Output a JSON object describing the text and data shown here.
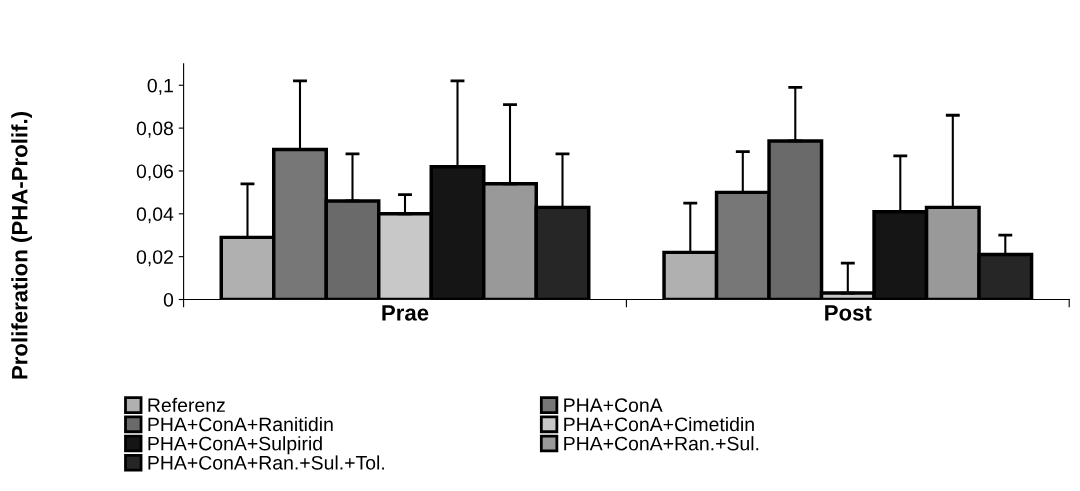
{
  "chart_data": {
    "type": "bar",
    "ylabel": "Proliferation (PHA-Prolif.)",
    "categories": [
      "Prae",
      "Post"
    ],
    "series": [
      {
        "name": "Referenz",
        "color": "#b0b0b0",
        "values": [
          0.029,
          0.022
        ],
        "errors": [
          [
            0.029,
            0.054
          ],
          [
            0.022,
            0.045
          ]
        ]
      },
      {
        "name": "PHA+ConA",
        "color": "#777777",
        "values": [
          0.07,
          0.05
        ],
        "errors": [
          [
            0.07,
            0.102
          ],
          [
            0.05,
            0.069
          ]
        ]
      },
      {
        "name": "PHA+ConA+Ranitidin",
        "color": "#6a6a6a",
        "values": [
          0.046,
          0.074
        ],
        "errors": [
          [
            0.046,
            0.068
          ],
          [
            0.074,
            0.099
          ]
        ]
      },
      {
        "name": "PHA+ConA+Cimetidin",
        "color": "#c8c8c8",
        "values": [
          0.04,
          0.003
        ],
        "errors": [
          [
            0.04,
            0.049
          ],
          [
            0.003,
            0.017
          ]
        ]
      },
      {
        "name": "PHA+ConA+Sulpirid",
        "color": "#151515",
        "values": [
          0.062,
          0.041
        ],
        "errors": [
          [
            0.062,
            0.102
          ],
          [
            0.041,
            0.067
          ]
        ]
      },
      {
        "name": "PHA+ConA+Ran.+Sul.",
        "color": "#999999",
        "values": [
          0.054,
          0.043
        ],
        "errors": [
          [
            0.054,
            0.091
          ],
          [
            0.043,
            0.086
          ]
        ]
      },
      {
        "name": "PHA+ConA+Ran.+Sul.+Tol.",
        "color": "#262626",
        "values": [
          0.043,
          0.021
        ],
        "errors": [
          [
            0.043,
            0.068
          ],
          [
            0.021,
            0.03
          ]
        ]
      }
    ],
    "ylim": [
      0,
      0.11
    ],
    "yticks": [
      0,
      {
        "value": 0.02,
        "label": "0,02"
      },
      {
        "value": 0.04,
        "label": "0,04"
      },
      {
        "value": 0.06,
        "label": "0,06"
      },
      {
        "value": 0.08,
        "label": "0,08"
      },
      {
        "value": 0.1,
        "label": "0,1"
      }
    ],
    "grid": false,
    "legend": "bottom"
  }
}
